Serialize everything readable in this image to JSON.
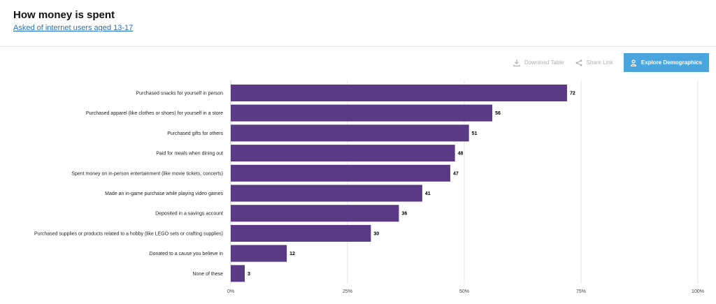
{
  "header": {
    "title": "How money is spent",
    "subtitle": "Asked of internet users aged 13-17"
  },
  "toolbar": {
    "download_label": "Download Table",
    "download_icon": "download-icon",
    "share_label": "Share Link",
    "share_icon": "share-icon",
    "demographics_label": "Explore Demographics",
    "demographics_icon": "person-icon"
  },
  "colors": {
    "bar": "#5a3a85",
    "accent": "#4aa4de",
    "link": "#1a73c8"
  },
  "chart_data": {
    "type": "bar",
    "orientation": "horizontal",
    "categories": [
      "Purchased snacks for yourself in person",
      "Purchased apparel (like clothes or shoes) for yourself in a store",
      "Purchased gifts for others",
      "Paid for meals when dining out",
      "Spent money on in-person entertainment (like movie tickets, concerts)",
      "Made an in-game purchase while playing video games",
      "Deposited in a savings account",
      "Purchased supplies or products related to a hobby (like LEGO sets or crafting supplies)",
      "Donated to a cause you believe in",
      "None of these"
    ],
    "values": [
      72,
      56,
      51,
      48,
      47,
      41,
      36,
      30,
      12,
      3
    ],
    "xlim": [
      0,
      100
    ],
    "xticks": [
      0,
      25,
      50,
      75,
      100
    ],
    "xtick_labels": [
      "0%",
      "25%",
      "50%",
      "75%",
      "100%"
    ],
    "grid": true
  }
}
